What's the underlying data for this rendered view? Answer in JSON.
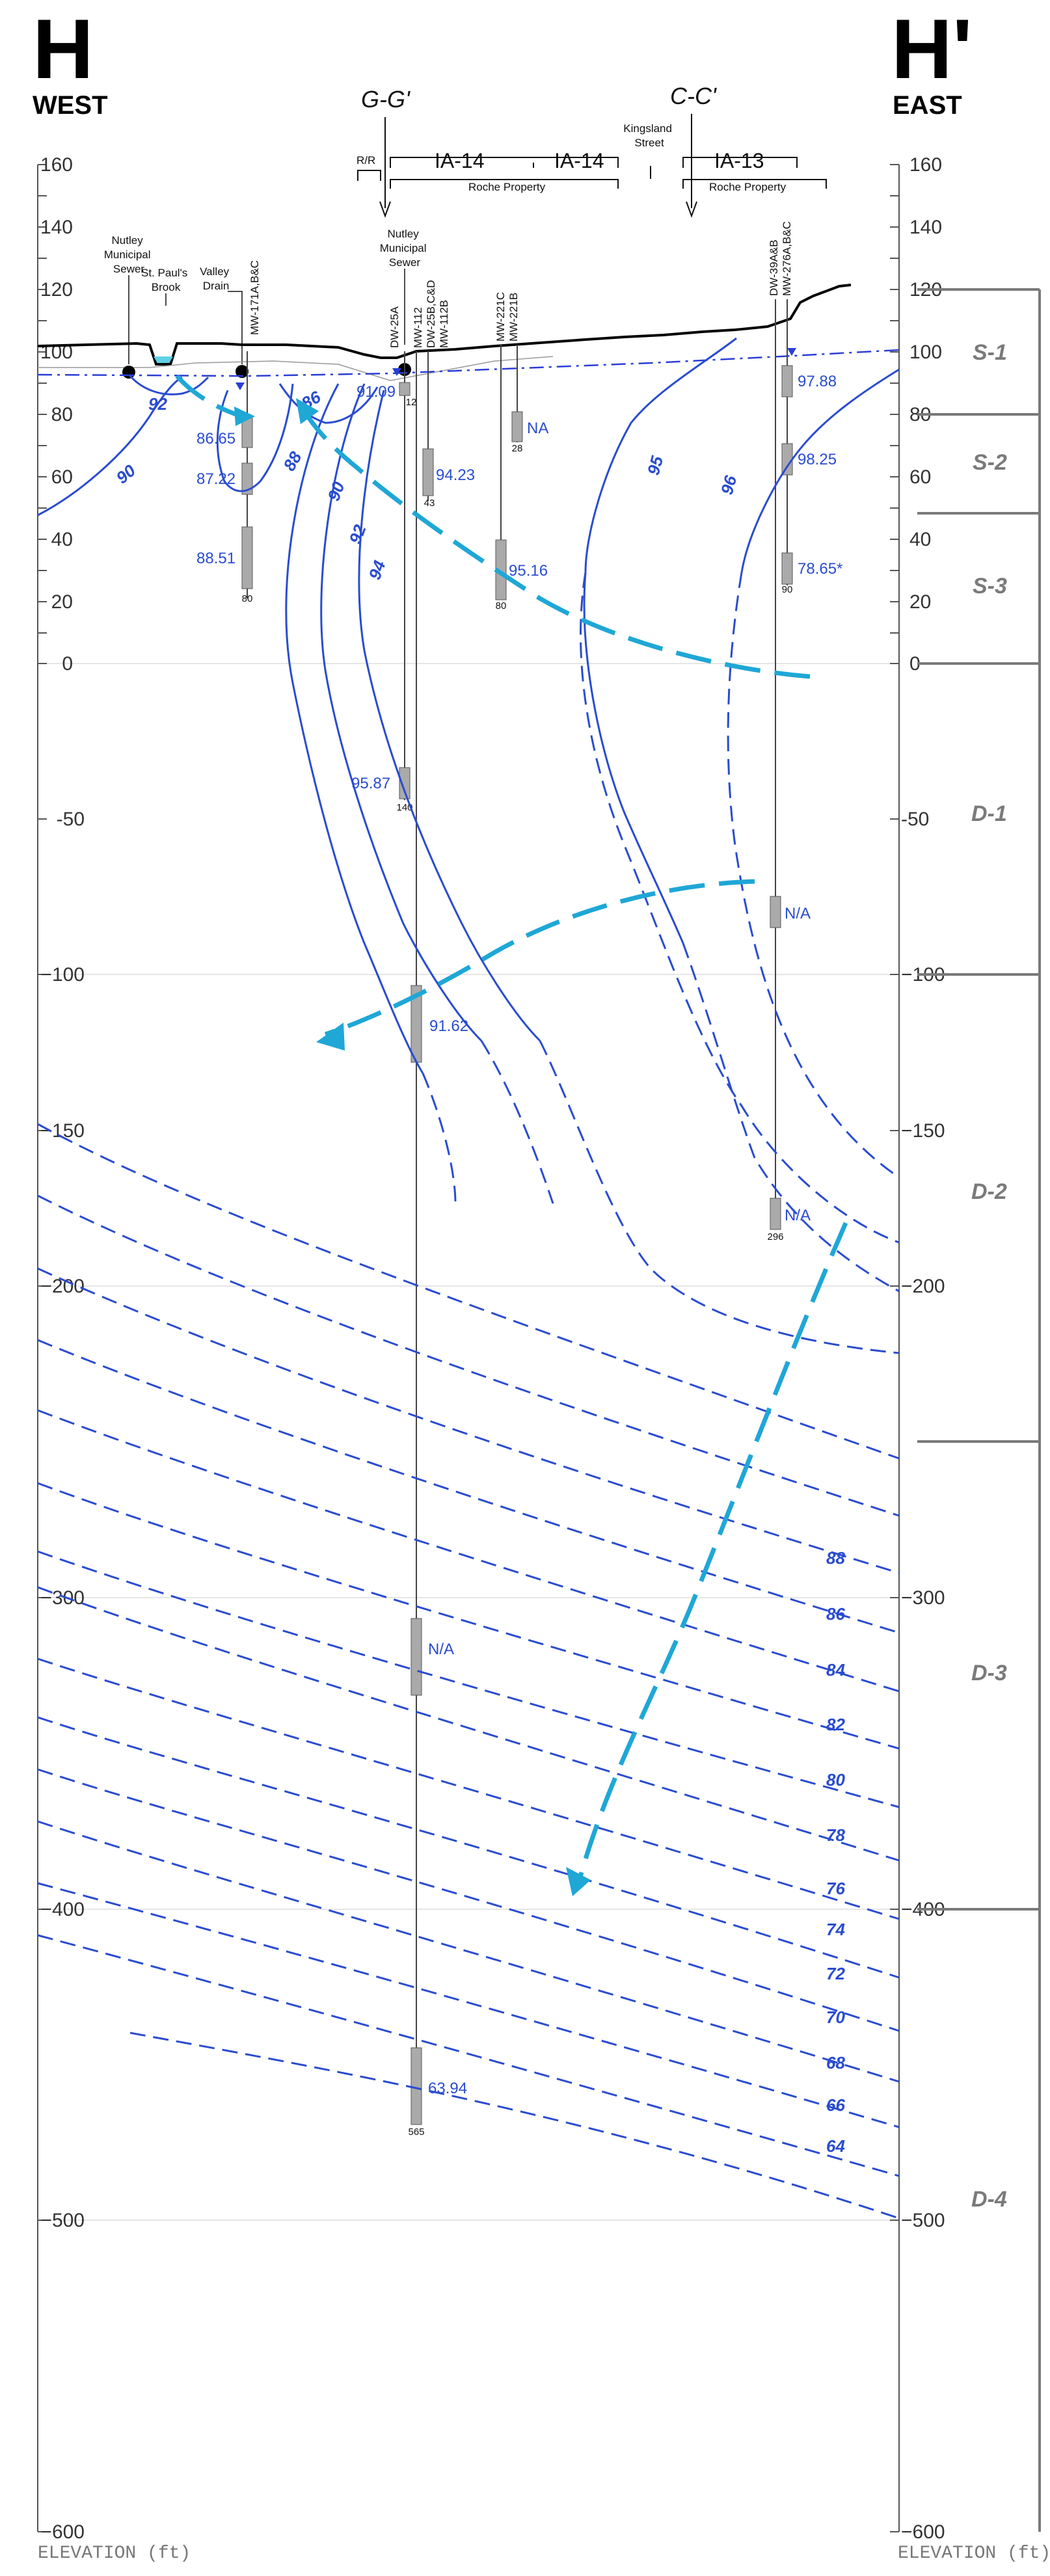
{
  "header": {
    "left_letter": "H",
    "right_letter": "H'",
    "left_direction": "WEST",
    "right_direction": "EAST",
    "cross_section_gg": "G-G'",
    "cross_section_cc": "C-C'"
  },
  "site_labels": {
    "rr": "R/R",
    "ia14_a": "IA-14",
    "ia14_b": "IA-14",
    "ia13": "IA-13",
    "roche_property_a": "Roche Property",
    "roche_property_b": "Roche Property",
    "kingsland_street": [
      "Kingsland",
      "Street"
    ],
    "nutley_sewer_west": [
      "Nutley",
      "Municipal",
      "Sewer"
    ],
    "st_pauls_brook": [
      "St. Paul's",
      "Brook"
    ],
    "valley_drain": [
      "Valley",
      "Drain"
    ],
    "nutley_sewer_center": [
      "Nutley",
      "Municipal",
      "Sewer"
    ]
  },
  "wells": {
    "mw171": "MW-171A,B&C",
    "dw25a": "DW-25A",
    "mw112": "MW-112",
    "dw25b": "DW-25B,C&D",
    "mw112b": "MW-112B",
    "mw221c": "MW-221C",
    "mw221b": "MW-221B",
    "dw39": "DW-39A&B",
    "mw276": "MW-276A,B&C"
  },
  "well_depths": {
    "mw171": "80",
    "dw25a": "12",
    "dw25b_shallow": "43",
    "mw221b": "28",
    "mw221c": "80",
    "dw39": "90",
    "mw112": "140",
    "mw276": "296",
    "dw25b_deep": "565"
  },
  "heads": {
    "h1": "86.65",
    "h2": "87.22",
    "h3": "88.51",
    "h4": "91.09",
    "h5": "94.23",
    "h6": "NA",
    "h7": "95.16",
    "h8": "97.88",
    "h9": "98.25",
    "h10": "78.65*",
    "h11": "95.87",
    "h12": "N/A",
    "h13": "91.62",
    "h14": "N/A",
    "h15": "N/A",
    "h16": "63.94"
  },
  "contour_labels": {
    "c92": "92",
    "c90": "90",
    "c88": "88",
    "c86": "86",
    "c90b": "90",
    "c92b": "92",
    "c94": "94",
    "c95": "95",
    "c96": "96",
    "d88": "88",
    "d86": "86",
    "d84": "84",
    "d82": "82",
    "d80": "80",
    "d78": "78",
    "d76": "76",
    "d74": "74",
    "d72": "72",
    "d70": "70",
    "d68": "68",
    "d66": "66",
    "d64": "64"
  },
  "zones": [
    "S-1",
    "S-2",
    "S-3",
    "D-1",
    "D-2",
    "D-3",
    "D-4"
  ],
  "axis": {
    "left_ticks": [
      "160",
      "140",
      "120",
      "100",
      "80",
      "60",
      "40",
      "20",
      "0",
      "-50",
      "−100",
      "−150",
      "−200",
      "−300",
      "−400",
      "−500",
      "−600"
    ],
    "right_ticks": [
      "160",
      "140",
      "120",
      "100",
      "80",
      "60",
      "40",
      "20",
      "0",
      "-50",
      "−100",
      "−150",
      "−200",
      "−300",
      "−400",
      "−500",
      "−600"
    ],
    "left_title": "ELEVATION  (ft)",
    "right_title": "ELEVATION  (ft)"
  },
  "colors": {
    "contour": "#2a4ccf",
    "flow_arrow": "#1fa7d6",
    "ground": "#000000",
    "axis": "#555555",
    "zone": "#7a7a7a"
  }
}
